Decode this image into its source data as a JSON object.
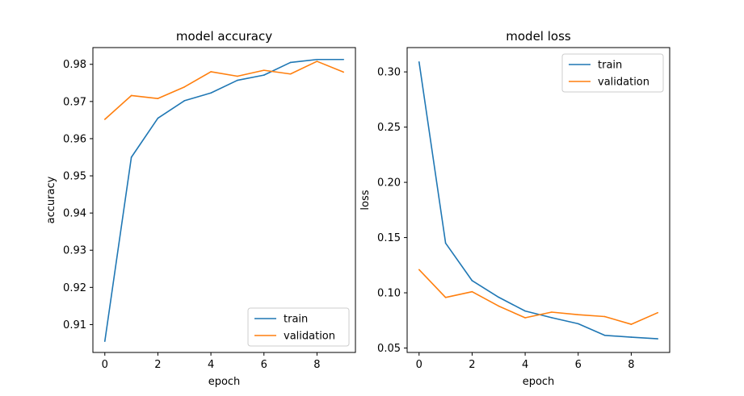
{
  "chart_data": [
    {
      "type": "line",
      "title": "model accuracy",
      "xlabel": "epoch",
      "ylabel": "accuracy",
      "xlim": [
        -0.45,
        9.45
      ],
      "ylim": [
        0.9025,
        0.9845
      ],
      "xticks": [
        0,
        2,
        4,
        6,
        8
      ],
      "xtick_labels": [
        "0",
        "2",
        "4",
        "6",
        "8"
      ],
      "yticks": [
        0.91,
        0.92,
        0.93,
        0.94,
        0.95,
        0.96,
        0.97,
        0.98
      ],
      "ytick_labels": [
        "0.91",
        "0.92",
        "0.93",
        "0.94",
        "0.95",
        "0.96",
        "0.97",
        "0.98"
      ],
      "legend_position": "lower-right",
      "x": [
        0,
        1,
        2,
        3,
        4,
        5,
        6,
        7,
        8,
        9
      ],
      "series": [
        {
          "name": "train",
          "color": "#1f77b4",
          "values": [
            0.9055,
            0.955,
            0.9655,
            0.9702,
            0.9723,
            0.9757,
            0.9771,
            0.9805,
            0.9813,
            0.9813
          ]
        },
        {
          "name": "validation",
          "color": "#ff7f0e",
          "values": [
            0.9652,
            0.9716,
            0.9708,
            0.9739,
            0.978,
            0.9768,
            0.9784,
            0.9774,
            0.9808,
            0.9779
          ]
        }
      ]
    },
    {
      "type": "line",
      "title": "model loss",
      "xlabel": "epoch",
      "ylabel": "loss",
      "xlim": [
        -0.45,
        9.45
      ],
      "ylim": [
        0.046,
        0.322
      ],
      "xticks": [
        0,
        2,
        4,
        6,
        8
      ],
      "xtick_labels": [
        "0",
        "2",
        "4",
        "6",
        "8"
      ],
      "yticks": [
        0.05,
        0.1,
        0.15,
        0.2,
        0.25,
        0.3
      ],
      "ytick_labels": [
        "0.05",
        "0.10",
        "0.15",
        "0.20",
        "0.25",
        "0.30"
      ],
      "legend_position": "upper-right",
      "x": [
        0,
        1,
        2,
        3,
        4,
        5,
        6,
        7,
        8,
        9
      ],
      "series": [
        {
          "name": "train",
          "color": "#1f77b4",
          "values": [
            0.309,
            0.145,
            0.111,
            0.096,
            0.0835,
            0.0775,
            0.072,
            0.0615,
            0.0598,
            0.0584
          ]
        },
        {
          "name": "validation",
          "color": "#ff7f0e",
          "values": [
            0.121,
            0.0958,
            0.101,
            0.088,
            0.0774,
            0.0825,
            0.0802,
            0.0785,
            0.0715,
            0.082
          ]
        }
      ]
    }
  ]
}
